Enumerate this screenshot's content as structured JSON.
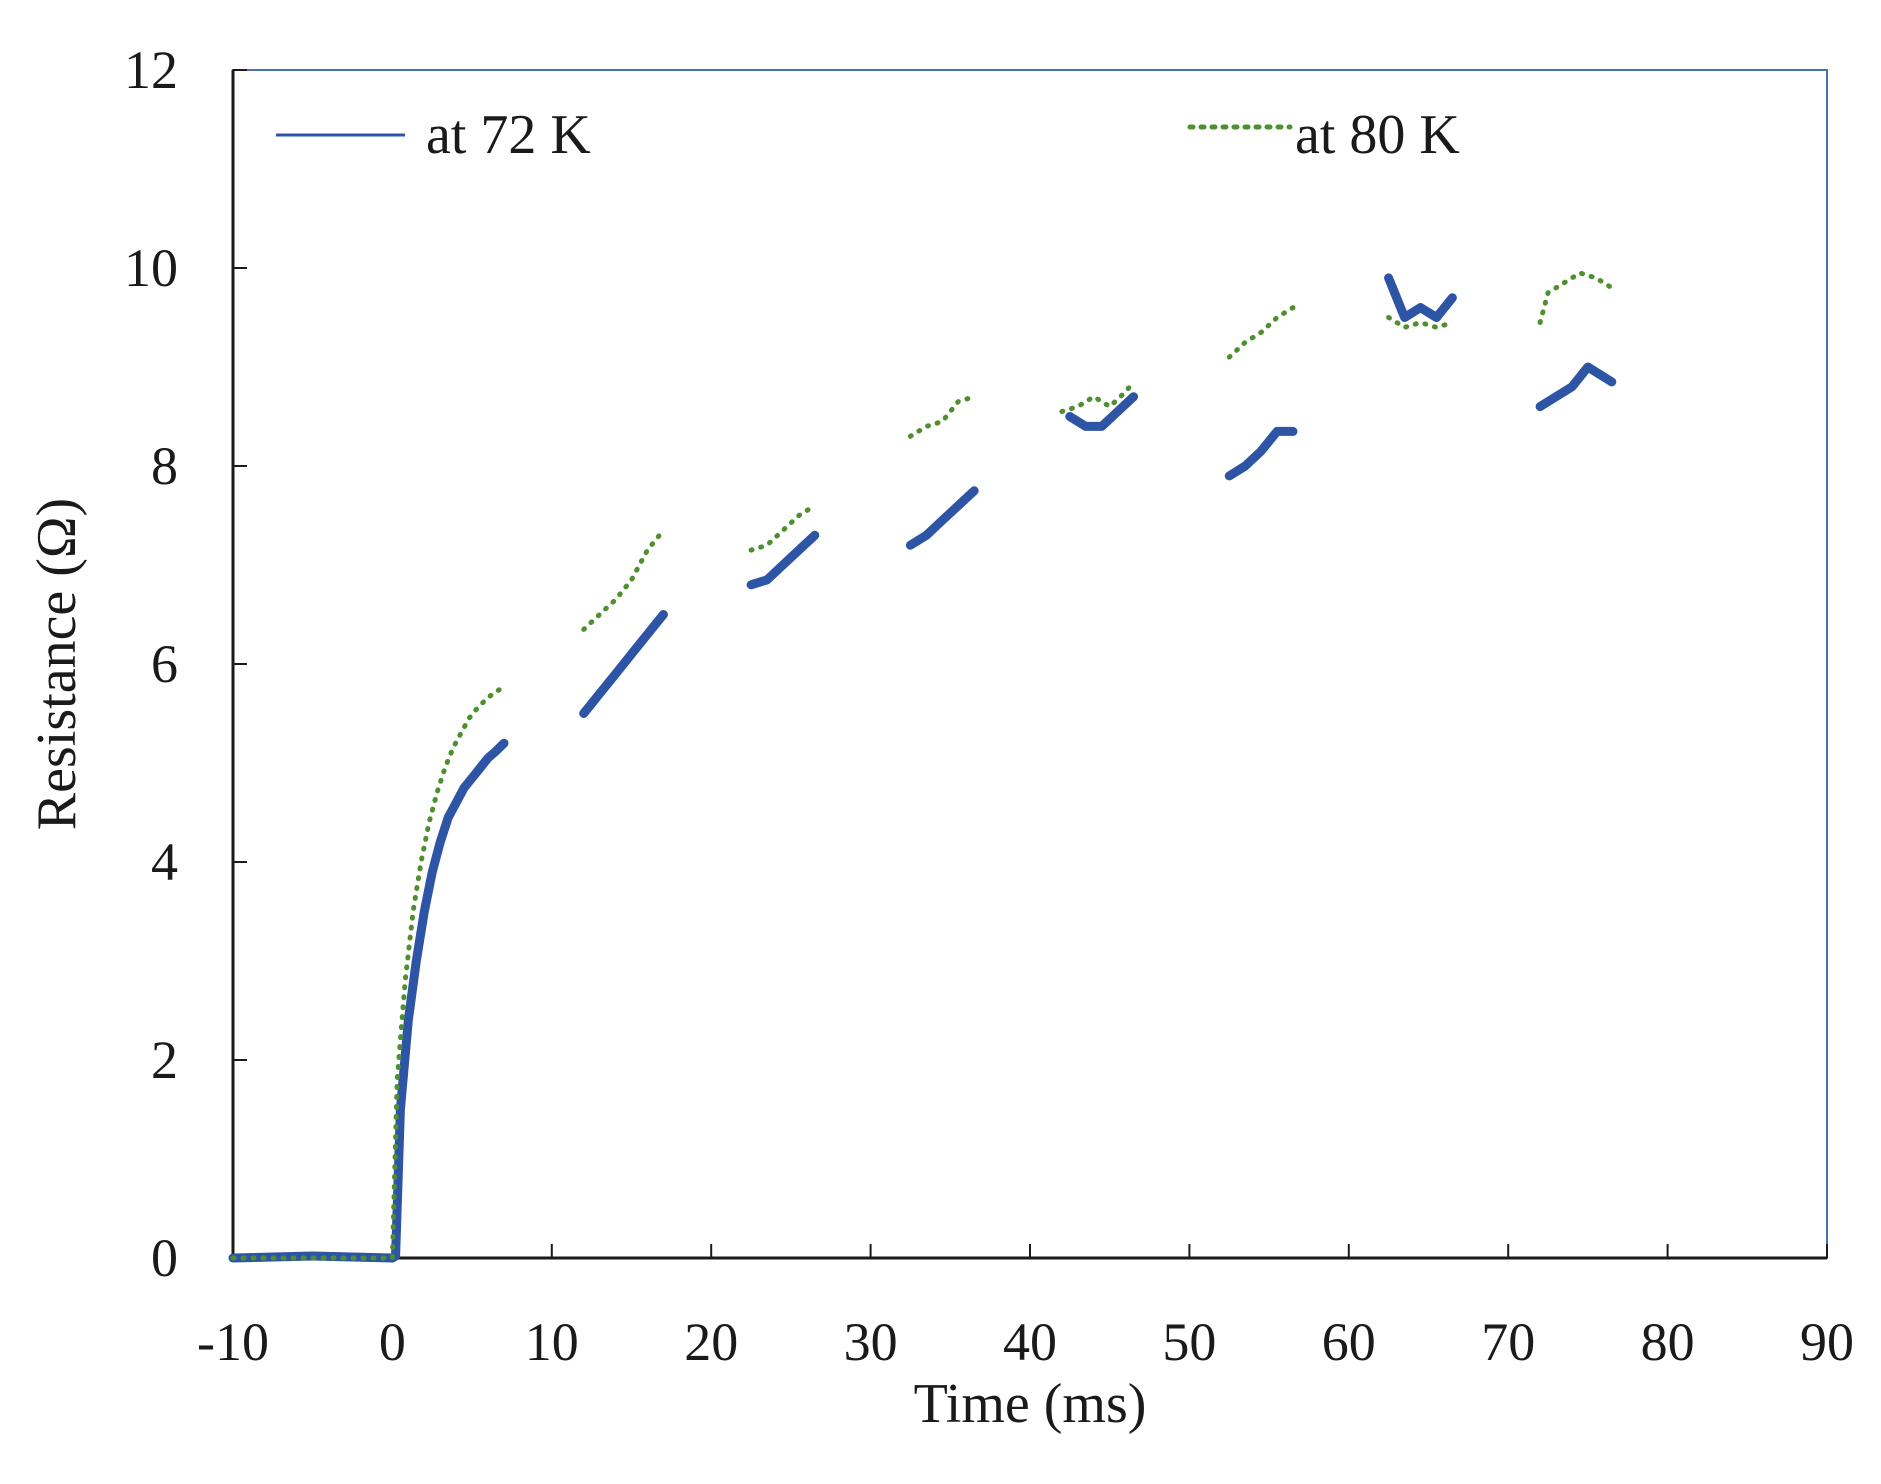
{
  "chart_data": {
    "type": "scatter",
    "title": "",
    "xlabel": "Time (ms)",
    "ylabel": "Resistance (Ω)",
    "xlim": [
      -10,
      90
    ],
    "ylim": [
      0,
      12
    ],
    "xticks": [
      "-10",
      "0",
      "10",
      "20",
      "30",
      "40",
      "50",
      "60",
      "70",
      "80",
      "90"
    ],
    "yticks": [
      "0",
      "2",
      "4",
      "6",
      "8",
      "10",
      "12"
    ],
    "grid": false,
    "legend_position": "top",
    "series": [
      {
        "name": "at 72 K",
        "color": "#2e55a5",
        "style": "solid",
        "segments": [
          [
            [
              -10,
              0
            ],
            [
              -5,
              0.02
            ],
            [
              0,
              0
            ],
            [
              0.2,
              0.02
            ],
            [
              0.5,
              1.5
            ],
            [
              1,
              2.4
            ],
            [
              1.5,
              3.0
            ],
            [
              2,
              3.5
            ],
            [
              2.5,
              3.9
            ],
            [
              3,
              4.2
            ],
            [
              3.5,
              4.45
            ],
            [
              4,
              4.6
            ],
            [
              4.5,
              4.75
            ],
            [
              5,
              4.85
            ],
            [
              5.5,
              4.95
            ],
            [
              6,
              5.05
            ],
            [
              6.5,
              5.12
            ],
            [
              7,
              5.2
            ]
          ],
          [
            [
              12,
              5.5
            ],
            [
              13,
              5.7
            ],
            [
              14,
              5.9
            ],
            [
              15,
              6.1
            ],
            [
              16,
              6.3
            ],
            [
              17,
              6.5
            ]
          ],
          [
            [
              22.5,
              6.8
            ],
            [
              23.5,
              6.85
            ],
            [
              24.5,
              7.0
            ],
            [
              25.5,
              7.15
            ],
            [
              26.5,
              7.3
            ]
          ],
          [
            [
              32.5,
              7.2
            ],
            [
              33.5,
              7.3
            ],
            [
              34.5,
              7.45
            ],
            [
              35.5,
              7.6
            ],
            [
              36.5,
              7.75
            ]
          ],
          [
            [
              42.5,
              8.5
            ],
            [
              43.5,
              8.4
            ],
            [
              44.5,
              8.4
            ],
            [
              45.5,
              8.55
            ],
            [
              46.5,
              8.7
            ]
          ],
          [
            [
              52.5,
              7.9
            ],
            [
              53.5,
              8.0
            ],
            [
              54.5,
              8.15
            ],
            [
              55.5,
              8.35
            ],
            [
              56.5,
              8.35
            ]
          ],
          [
            [
              62.5,
              9.9
            ],
            [
              63.5,
              9.5
            ],
            [
              64.5,
              9.6
            ],
            [
              65.5,
              9.5
            ],
            [
              66.5,
              9.7
            ]
          ],
          [
            [
              72,
              8.6
            ],
            [
              73,
              8.7
            ],
            [
              74,
              8.8
            ],
            [
              75,
              9.0
            ],
            [
              76,
              8.9
            ],
            [
              76.5,
              8.85
            ]
          ]
        ]
      },
      {
        "name": "at 80 K",
        "color": "#4f8f2f",
        "style": "dotted",
        "segments": [
          [
            [
              -10,
              0
            ],
            [
              0,
              0
            ],
            [
              0.3,
              1.8
            ],
            [
              0.8,
              2.8
            ],
            [
              1.3,
              3.5
            ],
            [
              1.8,
              4.0
            ],
            [
              2.3,
              4.4
            ],
            [
              2.8,
              4.7
            ],
            [
              3.3,
              4.95
            ],
            [
              3.8,
              5.15
            ],
            [
              4.3,
              5.3
            ],
            [
              4.8,
              5.45
            ],
            [
              5.3,
              5.55
            ],
            [
              5.8,
              5.63
            ],
            [
              6.3,
              5.7
            ],
            [
              6.8,
              5.75
            ]
          ],
          [
            [
              12,
              6.35
            ],
            [
              13,
              6.5
            ],
            [
              14,
              6.65
            ],
            [
              15,
              6.85
            ],
            [
              16,
              7.15
            ],
            [
              17,
              7.35
            ]
          ],
          [
            [
              22.5,
              7.15
            ],
            [
              23.5,
              7.2
            ],
            [
              24.5,
              7.35
            ],
            [
              25.5,
              7.5
            ],
            [
              26.5,
              7.6
            ]
          ],
          [
            [
              32.5,
              8.3
            ],
            [
              33.5,
              8.4
            ],
            [
              34.5,
              8.45
            ],
            [
              35.5,
              8.65
            ],
            [
              36.5,
              8.7
            ]
          ],
          [
            [
              42,
              8.55
            ],
            [
              43,
              8.6
            ],
            [
              44,
              8.7
            ],
            [
              45,
              8.6
            ],
            [
              46,
              8.75
            ],
            [
              46.5,
              8.85
            ]
          ],
          [
            [
              52.5,
              9.1
            ],
            [
              53.5,
              9.25
            ],
            [
              54.5,
              9.35
            ],
            [
              55.5,
              9.5
            ],
            [
              56.5,
              9.6
            ]
          ],
          [
            [
              62.5,
              9.5
            ],
            [
              63.5,
              9.4
            ],
            [
              64.5,
              9.45
            ],
            [
              65.5,
              9.4
            ],
            [
              66.5,
              9.45
            ]
          ],
          [
            [
              72,
              9.45
            ],
            [
              72.5,
              9.75
            ],
            [
              73.5,
              9.85
            ],
            [
              74.5,
              9.95
            ],
            [
              75.5,
              9.9
            ],
            [
              76.5,
              9.8
            ]
          ]
        ]
      }
    ]
  }
}
